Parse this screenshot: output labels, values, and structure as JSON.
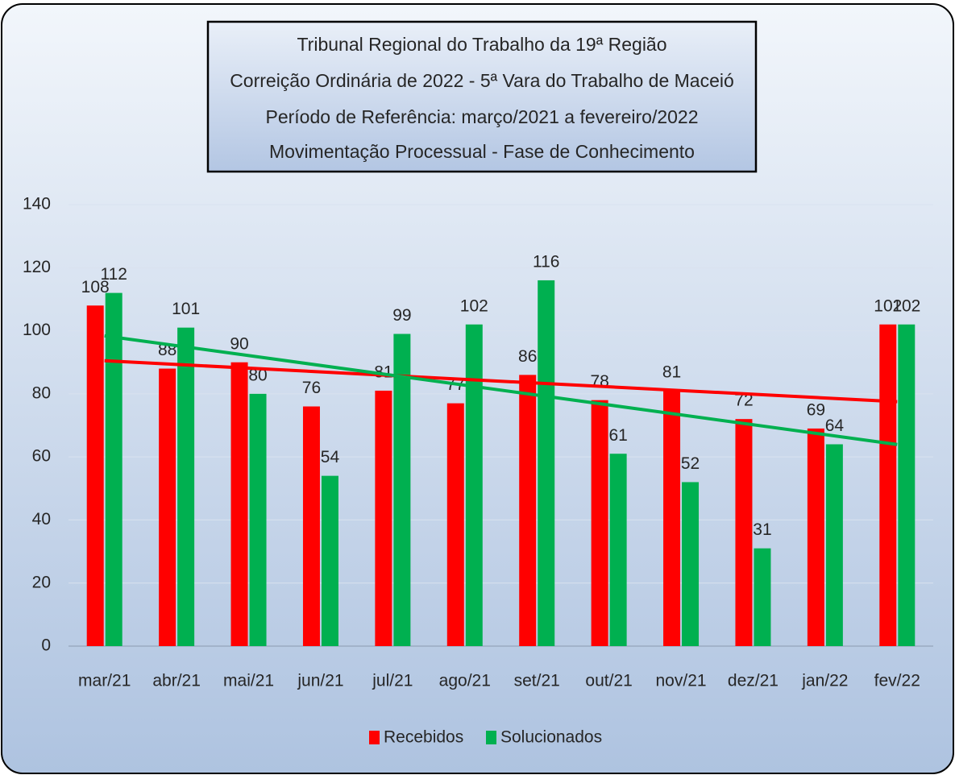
{
  "chart_data": {
    "type": "bar",
    "title": [
      "Tribunal Regional do Trabalho da 19ª Região",
      "Correição Ordinária de 2022 - 5ª Vara do Trabalho de Maceió",
      "Período de Referência: março/2021 a fevereiro/2022",
      "Movimentação Processual - Fase de Conhecimento"
    ],
    "categories": [
      "mar/21",
      "abr/21",
      "mai/21",
      "jun/21",
      "jul/21",
      "ago/21",
      "set/21",
      "out/21",
      "nov/21",
      "dez/21",
      "jan/22",
      "fev/22"
    ],
    "series": [
      {
        "name": "Recebidos",
        "color": "#ff0000",
        "values": [
          108,
          88,
          90,
          76,
          81,
          77,
          86,
          78,
          81,
          72,
          69,
          102
        ]
      },
      {
        "name": "Solucionados",
        "color": "#00b050",
        "values": [
          112,
          101,
          80,
          54,
          99,
          102,
          116,
          61,
          52,
          31,
          64,
          102
        ]
      }
    ],
    "ylim": [
      0,
      140
    ],
    "yticks": [
      0,
      20,
      40,
      60,
      80,
      100,
      120,
      140
    ],
    "grid": true,
    "trendline": true,
    "legend": "bottom"
  }
}
